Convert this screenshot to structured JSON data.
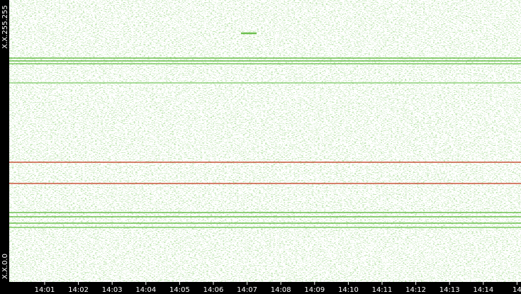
{
  "y_axis": {
    "top": "X.X.255.255",
    "bottom": "X.X.0.0"
  },
  "x_axis": {
    "ticks": [
      "14:01",
      "14:02",
      "14:03",
      "14:04",
      "14:05",
      "14:06",
      "14:07",
      "14:08",
      "14:09",
      "14:10",
      "14:11",
      "14:12",
      "14:13",
      "14:14",
      "14"
    ]
  }
}
